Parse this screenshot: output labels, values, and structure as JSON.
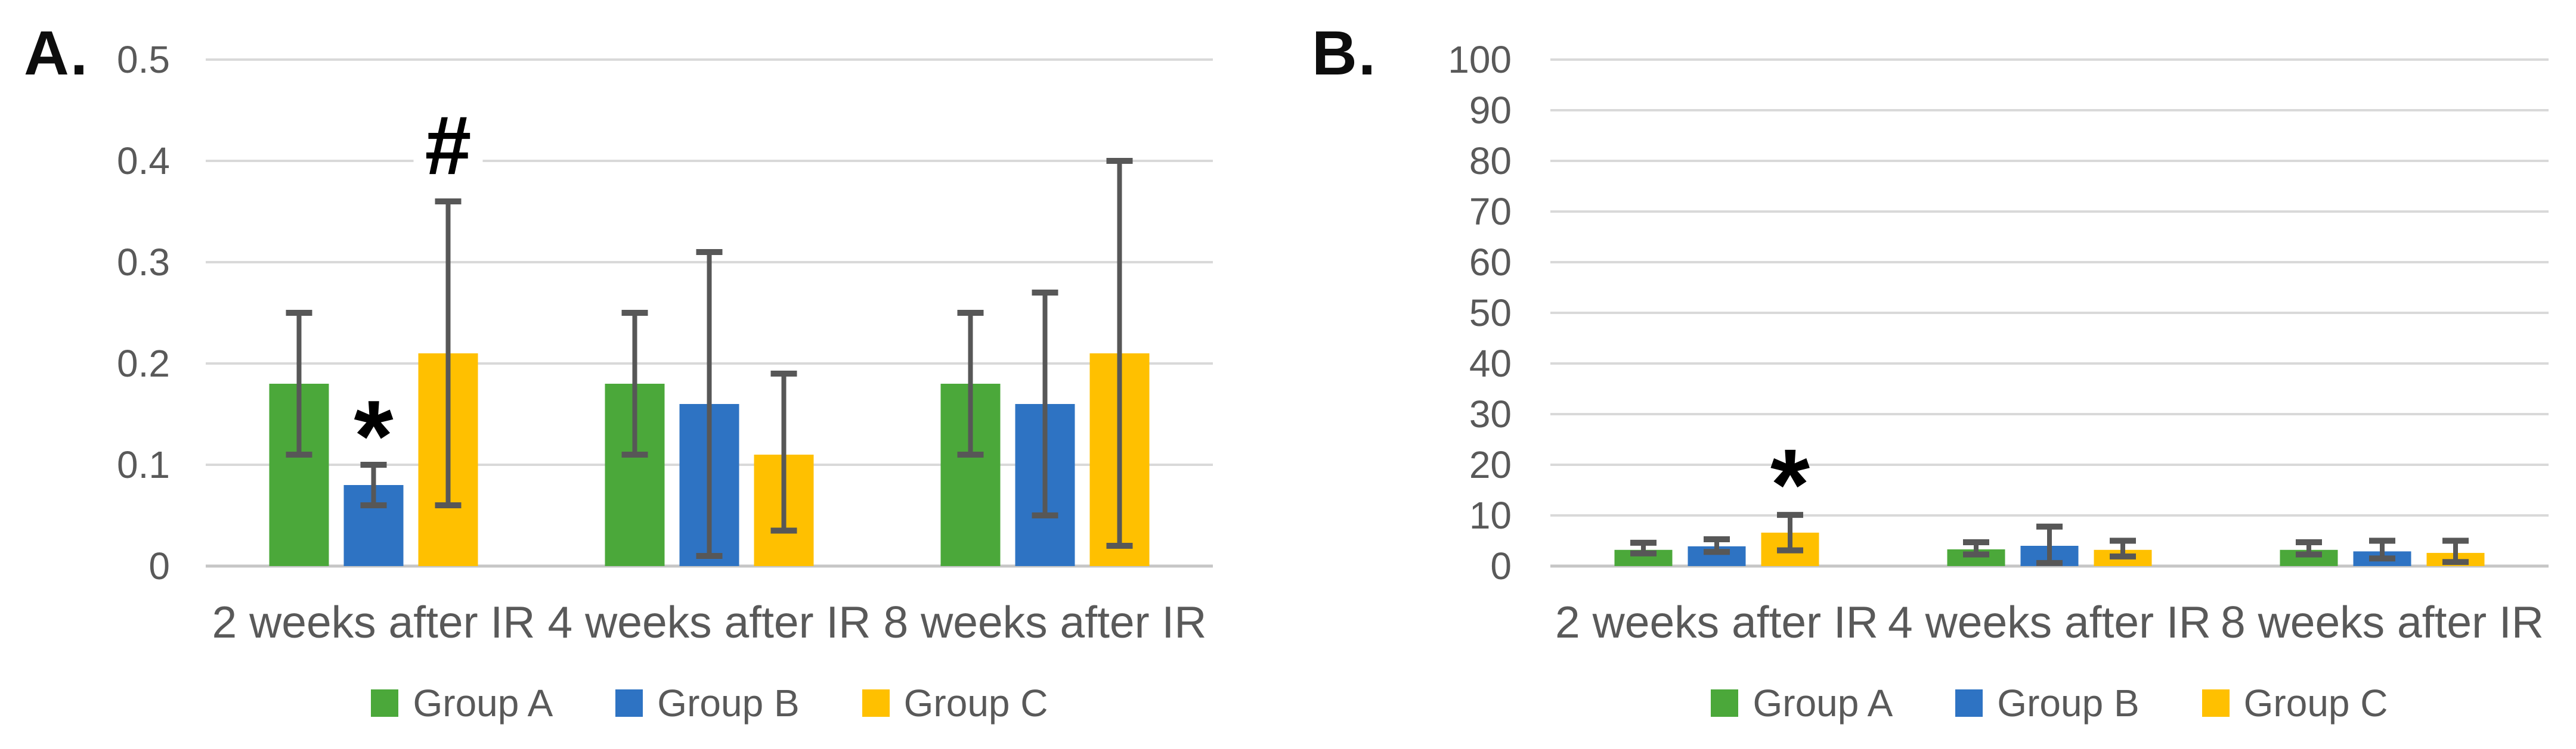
{
  "colors": {
    "group_a": "#4BA83A",
    "group_b": "#2E73C3",
    "group_c": "#FFC000",
    "axis_text": "#595959",
    "gridline": "#D9D9D9",
    "axis_line": "#C6C6C6",
    "error_bar": "#575757",
    "annotation": "#000000",
    "panel_label": "#0D0D0D"
  },
  "legend": {
    "items": [
      {
        "label": "Group A",
        "color_key": "group_a"
      },
      {
        "label": "Group B",
        "color_key": "group_b"
      },
      {
        "label": "Group C",
        "color_key": "group_c"
      }
    ]
  },
  "chart_data": [
    {
      "id": "A",
      "type": "bar",
      "panel_label": "A.",
      "title": "",
      "xlabel": "",
      "ylabel": "",
      "categories": [
        "2 weeks after IR",
        "4 weeks after IR",
        "8 weeks after IR"
      ],
      "ylim": [
        0,
        0.5
      ],
      "ytick_step": 0.1,
      "ytick_labels": [
        "0",
        "0.1",
        "0.2",
        "0.3",
        "0.4",
        "0.5"
      ],
      "grid": true,
      "legend_position": "bottom",
      "series": [
        {
          "name": "Group A",
          "color_key": "group_a",
          "values": [
            0.18,
            0.18,
            0.18
          ],
          "err_low": [
            0.11,
            0.11,
            0.11
          ],
          "err_high": [
            0.25,
            0.25,
            0.25
          ]
        },
        {
          "name": "Group B",
          "color_key": "group_b",
          "values": [
            0.08,
            0.16,
            0.16
          ],
          "err_low": [
            0.06,
            0.01,
            0.05
          ],
          "err_high": [
            0.1,
            0.31,
            0.27
          ]
        },
        {
          "name": "Group C",
          "color_key": "group_c",
          "values": [
            0.21,
            0.11,
            0.21
          ],
          "err_low": [
            0.06,
            0.035,
            0.02
          ],
          "err_high": [
            0.36,
            0.19,
            0.4
          ]
        }
      ],
      "annotations": [
        {
          "text": "*",
          "category_index": 0,
          "series_index": 1,
          "baseline_value": 0.094,
          "font_px": 170
        },
        {
          "text": "#",
          "category_index": 0,
          "series_index": 2,
          "baseline_value": 0.387,
          "font_px": 140
        }
      ]
    },
    {
      "id": "B",
      "type": "bar",
      "panel_label": "B.",
      "title": "",
      "xlabel": "",
      "ylabel": "",
      "categories": [
        "2 weeks after IR",
        "4 weeks after IR",
        "8 weeks after IR"
      ],
      "ylim": [
        0,
        100
      ],
      "ytick_step": 10,
      "ytick_labels": [
        "0",
        "10",
        "20",
        "30",
        "40",
        "50",
        "60",
        "70",
        "80",
        "90",
        "100"
      ],
      "grid": true,
      "legend_position": "bottom",
      "series": [
        {
          "name": "Group A",
          "color_key": "group_a",
          "values": [
            3.2,
            3.3,
            3.2
          ],
          "err_low": [
            2.5,
            2.3,
            2.3
          ],
          "err_high": [
            4.6,
            4.7,
            4.7
          ]
        },
        {
          "name": "Group B",
          "color_key": "group_b",
          "values": [
            3.9,
            4.0,
            2.9
          ],
          "err_low": [
            2.8,
            0.6,
            1.5
          ],
          "err_high": [
            5.3,
            7.8,
            5.0
          ]
        },
        {
          "name": "Group C",
          "color_key": "group_c",
          "values": [
            6.6,
            3.2,
            2.6
          ],
          "err_low": [
            3.1,
            1.9,
            0.8
          ],
          "err_high": [
            10.1,
            5.0,
            5.0
          ]
        }
      ],
      "annotations": [
        {
          "text": "*",
          "category_index": 0,
          "series_index": 2,
          "baseline_value": 9.2,
          "font_px": 170
        }
      ]
    }
  ]
}
